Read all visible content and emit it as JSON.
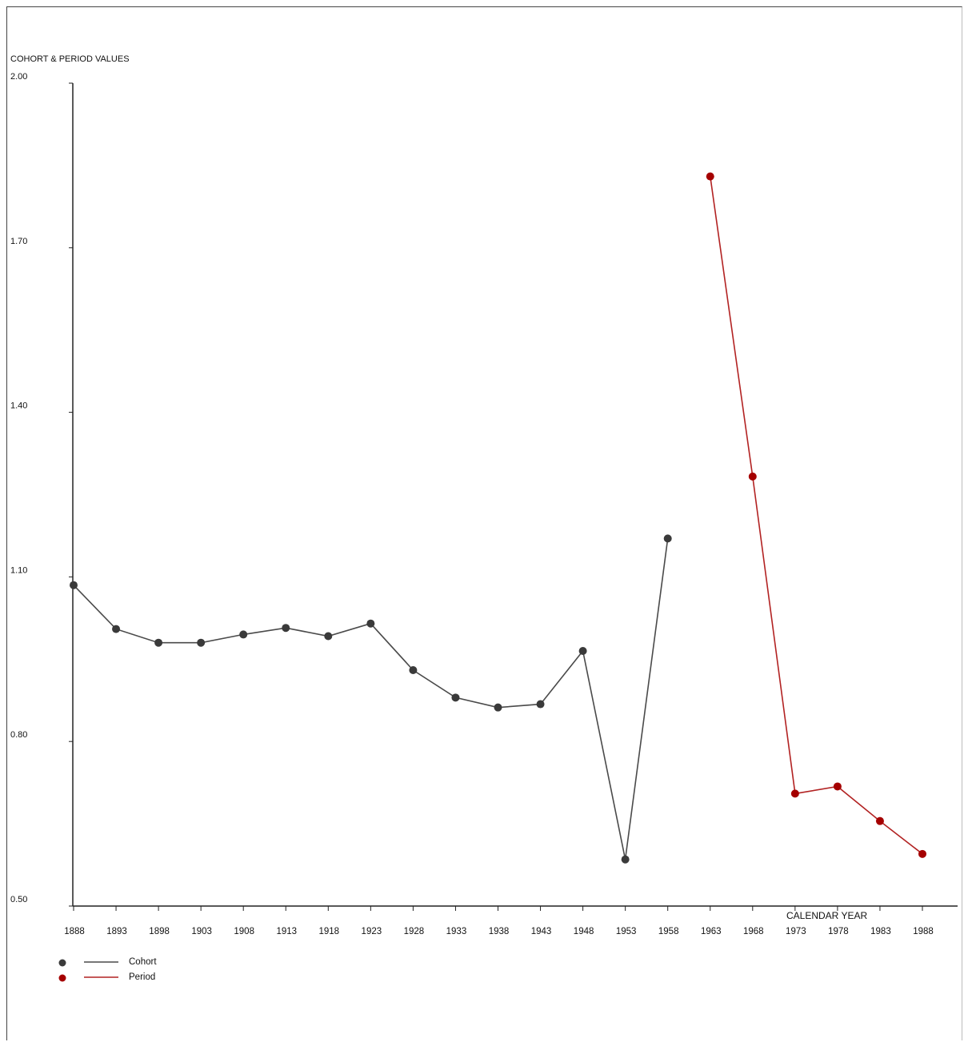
{
  "chart_data": {
    "type": "line",
    "ylabel": "COHORT & PERIOD VALUES",
    "xlabel": "CALENDAR YEAR",
    "ylim": [
      0.5,
      2.0
    ],
    "yticks": [
      "2.00",
      "1.70",
      "1.40",
      "1.10",
      "0.80",
      "0.50"
    ],
    "x_ticks": [
      "1888",
      "1893",
      "1898",
      "1903",
      "1908",
      "1913",
      "1918",
      "1923",
      "1928",
      "1933",
      "1938",
      "1943",
      "1948",
      "1953",
      "1958",
      "1963",
      "1968",
      "1973",
      "1978",
      "1983",
      "1988"
    ],
    "x_range": [
      1888,
      1988
    ],
    "grid": false,
    "legend_position": "bottom-left",
    "series": [
      {
        "name": "Cohort",
        "color": "#4a4a4a",
        "marker_color": "#3a3a3a",
        "x": [
          1888,
          1893,
          1898,
          1903,
          1908,
          1913,
          1918,
          1923,
          1928,
          1933,
          1938,
          1943,
          1948,
          1953,
          1958
        ],
        "y": [
          1.085,
          1.005,
          0.98,
          0.98,
          0.995,
          1.007,
          0.992,
          1.015,
          0.93,
          0.88,
          0.862,
          0.868,
          0.965,
          0.585,
          1.17
        ]
      },
      {
        "name": "Period",
        "color": "#b22222",
        "marker_color": "#a50000",
        "x": [
          1963,
          1968,
          1973,
          1978,
          1983,
          1988
        ],
        "y": [
          1.83,
          1.283,
          0.705,
          0.718,
          0.655,
          0.595
        ]
      }
    ]
  }
}
